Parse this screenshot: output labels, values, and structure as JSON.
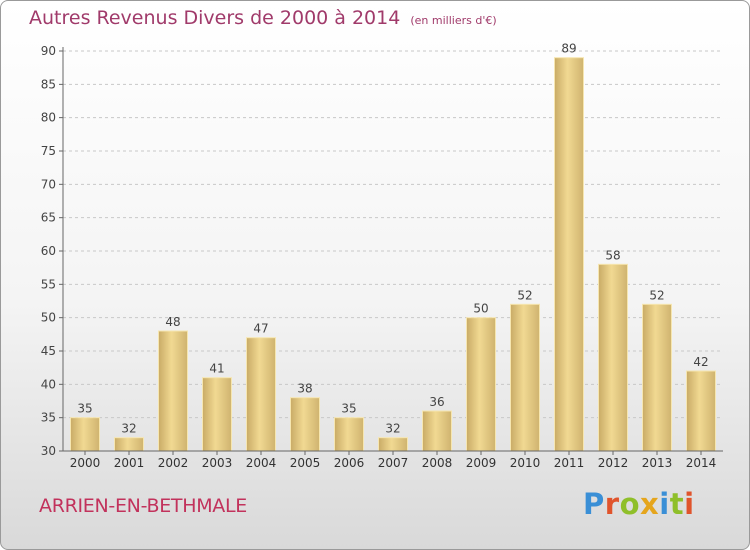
{
  "chart_data": {
    "type": "bar",
    "title": "Autres Revenus Divers de 2000 à 2014",
    "subtitle": "(en milliers d'€)",
    "categories": [
      "2000",
      "2001",
      "2002",
      "2003",
      "2004",
      "2005",
      "2006",
      "2007",
      "2008",
      "2009",
      "2010",
      "2011",
      "2012",
      "2013",
      "2014"
    ],
    "values": [
      35,
      32,
      48,
      41,
      47,
      38,
      35,
      32,
      36,
      50,
      52,
      89,
      58,
      52,
      42
    ],
    "xlabel": "",
    "ylabel": "",
    "ylim": [
      30,
      90
    ],
    "yticks": [
      30,
      35,
      40,
      45,
      50,
      55,
      60,
      65,
      70,
      75,
      80,
      85,
      90
    ],
    "grid": "horizontal dashed",
    "legend": "none",
    "colors": {
      "bar": "#e8cc84",
      "bar_edge": "#f6e6b0",
      "title": "#a03a6a",
      "commune": "#c2325c"
    }
  },
  "footer": {
    "commune": "ARRIEN-EN-BETHMALE"
  },
  "brand": {
    "letters": [
      "P",
      "r",
      "o",
      "x",
      "i",
      "t",
      "i"
    ],
    "colors": [
      "#3a8fd6",
      "#e0542c",
      "#8fbf2a",
      "#e5a51c",
      "#3a8fd6",
      "#8fbf2a",
      "#e0542c"
    ]
  }
}
